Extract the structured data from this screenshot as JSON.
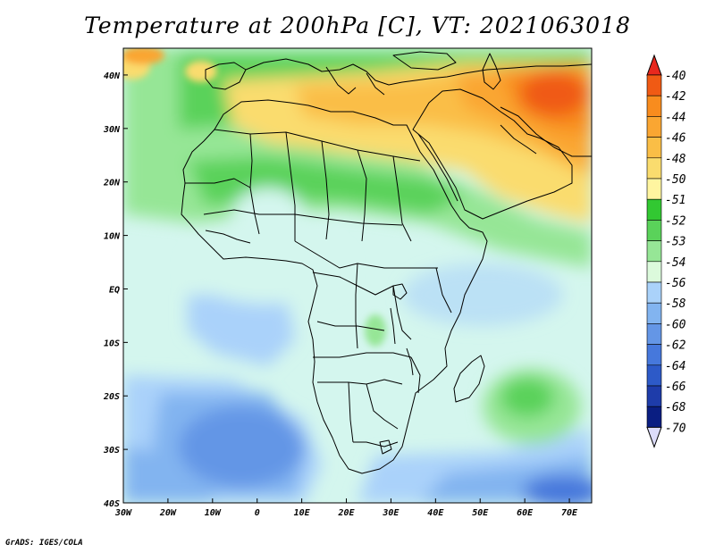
{
  "title": "Temperature at 200hPa [C], VT: 2021063018",
  "credit": "GrADS: IGES/COLA",
  "map": {
    "lon_range": [
      -30,
      75
    ],
    "lat_range": [
      -40,
      45
    ],
    "lon_ticks": [
      "30W",
      "20W",
      "10W",
      "0",
      "10E",
      "20E",
      "30E",
      "40E",
      "50E",
      "60E",
      "70E"
    ],
    "lat_ticks": [
      "40N",
      "30N",
      "20N",
      "10N",
      "EQ",
      "10S",
      "20S",
      "30S",
      "40S"
    ]
  },
  "colorbar": {
    "labels": [
      "-40",
      "-42",
      "-44",
      "-46",
      "-48",
      "-50",
      "-51",
      "-52",
      "-53",
      "-54",
      "-56",
      "-58",
      "-60",
      "-62",
      "-64",
      "-66",
      "-68",
      "-70"
    ],
    "colors": [
      "#e8281e",
      "#f05a14",
      "#f88c1e",
      "#faa632",
      "#fabe46",
      "#fadc6e",
      "#fff5a0",
      "#32c832",
      "#5ad25a",
      "#96e696",
      "#dcfadc",
      "#aad2fa",
      "#82b4f0",
      "#6496e6",
      "#4678dc",
      "#2d5ac8",
      "#1e3caa",
      "#0a1e82"
    ],
    "bottom_cap_color": "#dcdcfa"
  },
  "field_colors": {
    "ocean_default": "#d4f6ee",
    "cold_blue": "#82b4f0",
    "light_blue": "#aad2fa",
    "deep_blue": "#4678dc",
    "green": "#5ad25a",
    "light_green": "#96e696",
    "yellow": "#fadc6e",
    "orange": "#faa632",
    "dark_orange": "#f05a14"
  }
}
